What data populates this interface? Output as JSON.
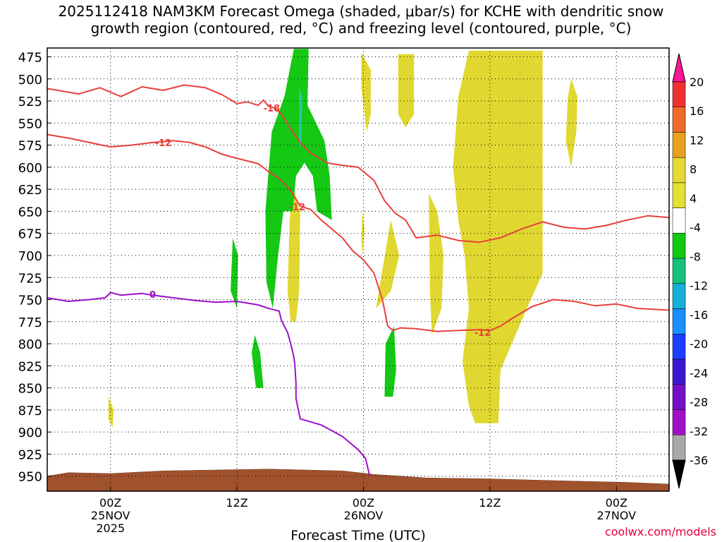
{
  "chart_data": {
    "type": "time-height",
    "title_line1": "2025112418 NAM3KM Forecast Omega (shaded, μbar/s) for KCHE with dendritic snow",
    "title_line2": "growth region (contoured, red, °C) and freezing level (contoured, purple, °C)",
    "xlabel": "Forecast Time (UTC)",
    "credit": "coolwx.com/models",
    "x_range_hours": [
      -6,
      53
    ],
    "x_ticks": [
      {
        "hour": 0,
        "lines": [
          "00Z",
          "25NOV",
          "2025"
        ]
      },
      {
        "hour": 12,
        "lines": [
          "12Z"
        ]
      },
      {
        "hour": 24,
        "lines": [
          "00Z",
          "26NOV"
        ]
      },
      {
        "hour": 36,
        "lines": [
          "12Z"
        ]
      },
      {
        "hour": 48,
        "lines": [
          "00Z",
          "27NOV"
        ]
      }
    ],
    "y_range_mb": [
      465,
      967
    ],
    "y_ticks": [
      475,
      500,
      525,
      550,
      575,
      600,
      625,
      650,
      675,
      700,
      725,
      750,
      775,
      800,
      825,
      850,
      875,
      900,
      925,
      950
    ],
    "colorbar": {
      "labels": [
        "20",
        "16",
        "12",
        "8",
        "4",
        "-4",
        "-8",
        "-12",
        "-16",
        "-20",
        "-24",
        "-28",
        "-32",
        "-36"
      ],
      "colors": [
        "#ff1493",
        "#ee3030",
        "#ee6a2a",
        "#e8a020",
        "#e6d836",
        "#e6e032",
        "#ffffff",
        "#12c812",
        "#14c07a",
        "#16b0d8",
        "#1890ff",
        "#1c3cff",
        "#3c18d0",
        "#7410c8",
        "#a010c8",
        "#a8a8a8",
        "#000000"
      ]
    },
    "omega_regions": [
      {
        "color": "#e0d830",
        "pts": [
          [
            34,
            468
          ],
          [
            41,
            468
          ],
          [
            41,
            720
          ],
          [
            39.5,
            760
          ],
          [
            37,
            830
          ],
          [
            36.8,
            890
          ],
          [
            34.6,
            890
          ],
          [
            34,
            870
          ],
          [
            33.4,
            820
          ],
          [
            34,
            760
          ],
          [
            33.6,
            700
          ],
          [
            33,
            660
          ],
          [
            32.5,
            600
          ],
          [
            33,
            520
          ]
        ]
      },
      {
        "color": "#e0d830",
        "pts": [
          [
            23.8,
            470
          ],
          [
            24.7,
            490
          ],
          [
            24.7,
            540
          ],
          [
            24.3,
            560
          ],
          [
            23.8,
            510
          ]
        ]
      },
      {
        "color": "#e0d830",
        "pts": [
          [
            27.3,
            472
          ],
          [
            28.8,
            472
          ],
          [
            28.8,
            540
          ],
          [
            28,
            555
          ],
          [
            27.3,
            540
          ]
        ]
      },
      {
        "color": "#e0d830",
        "pts": [
          [
            30.2,
            630
          ],
          [
            31,
            650
          ],
          [
            31.6,
            700
          ],
          [
            31.4,
            760
          ],
          [
            30.5,
            790
          ],
          [
            30.3,
            740
          ]
        ]
      },
      {
        "color": "#e0d830",
        "pts": [
          [
            26.6,
            660
          ],
          [
            27.4,
            700
          ],
          [
            26.6,
            740
          ],
          [
            25.2,
            760
          ],
          [
            25.6,
            730
          ]
        ]
      },
      {
        "color": "#e0d830",
        "pts": [
          [
            17.3,
            620
          ],
          [
            18,
            650
          ],
          [
            17.9,
            740
          ],
          [
            17.6,
            775
          ],
          [
            17.1,
            775
          ],
          [
            16.8,
            740
          ],
          [
            17,
            660
          ]
        ]
      },
      {
        "color": "#e0d830",
        "pts": [
          [
            43.7,
            500
          ],
          [
            44.3,
            520
          ],
          [
            44.2,
            560
          ],
          [
            43.7,
            600
          ],
          [
            43.2,
            570
          ],
          [
            43.4,
            520
          ]
        ]
      },
      {
        "color": "#e0d830",
        "pts": [
          [
            -0.2,
            860
          ],
          [
            0.3,
            875
          ],
          [
            0.2,
            895
          ],
          [
            -0.2,
            885
          ]
        ]
      },
      {
        "color": "#e0d830",
        "pts": [
          [
            23.9,
            650
          ],
          [
            24.1,
            670
          ],
          [
            23.9,
            700
          ],
          [
            23.8,
            680
          ]
        ]
      },
      {
        "color": "#14c814",
        "pts": [
          [
            17.4,
            466
          ],
          [
            18.8,
            466
          ],
          [
            18.7,
            530
          ],
          [
            20.3,
            570
          ],
          [
            20.8,
            610
          ],
          [
            21.0,
            660
          ],
          [
            19.6,
            650
          ],
          [
            19.2,
            610
          ],
          [
            18.4,
            595
          ],
          [
            17.6,
            610
          ],
          [
            17.3,
            650
          ],
          [
            16.4,
            650
          ],
          [
            15.9,
            700
          ],
          [
            15.4,
            760
          ],
          [
            14.8,
            730
          ],
          [
            14.7,
            650
          ],
          [
            15.3,
            560
          ],
          [
            16.5,
            520
          ]
        ]
      },
      {
        "color": "#14c814",
        "pts": [
          [
            11.6,
            680
          ],
          [
            12.1,
            700
          ],
          [
            12.0,
            760
          ],
          [
            11.4,
            740
          ]
        ]
      },
      {
        "color": "#14c814",
        "pts": [
          [
            13.7,
            790
          ],
          [
            14.2,
            810
          ],
          [
            14.5,
            850
          ],
          [
            13.8,
            850
          ],
          [
            13.4,
            810
          ]
        ]
      },
      {
        "color": "#14c814",
        "pts": [
          [
            26.1,
            800
          ],
          [
            26.9,
            780
          ],
          [
            27.1,
            830
          ],
          [
            26.8,
            860
          ],
          [
            26.0,
            860
          ]
        ]
      },
      {
        "color": "#28c8a0",
        "pts": [
          [
            17.9,
            510
          ],
          [
            18.2,
            520
          ],
          [
            18.1,
            580
          ],
          [
            17.9,
            570
          ]
        ]
      }
    ],
    "red_contours": [
      {
        "label": "-18",
        "label_at": [
          15.3,
          533
        ],
        "pts": [
          [
            -6,
            511
          ],
          [
            -3,
            517
          ],
          [
            -1,
            510
          ],
          [
            1,
            520
          ],
          [
            3,
            509
          ],
          [
            5,
            513
          ],
          [
            7,
            507
          ],
          [
            9,
            510
          ],
          [
            10.6,
            518
          ],
          [
            12,
            528
          ],
          [
            13,
            526
          ],
          [
            14,
            530
          ],
          [
            14.5,
            524
          ],
          [
            15,
            531
          ],
          [
            15.6,
            533
          ],
          [
            16.2,
            540
          ],
          [
            17,
            555
          ],
          [
            18,
            572
          ],
          [
            19,
            584
          ],
          [
            20.5,
            595
          ],
          [
            22,
            598
          ],
          [
            23.5,
            600
          ],
          [
            25,
            615
          ],
          [
            26,
            638
          ],
          [
            27,
            652
          ],
          [
            28,
            660
          ],
          [
            29,
            680
          ],
          [
            31,
            677
          ],
          [
            32,
            680
          ],
          [
            33,
            683
          ],
          [
            35,
            685
          ],
          [
            37,
            680
          ],
          [
            38,
            675
          ],
          [
            39,
            670
          ],
          [
            41,
            662
          ],
          [
            43,
            668
          ],
          [
            45,
            670
          ],
          [
            47,
            666
          ],
          [
            49,
            660
          ],
          [
            51,
            655
          ],
          [
            53,
            657
          ]
        ]
      },
      {
        "label": "-12",
        "label_at": [
          5,
          572
        ],
        "pts": [
          [
            -6,
            563
          ],
          [
            -4,
            567
          ],
          [
            -2,
            572
          ],
          [
            0,
            577
          ],
          [
            2,
            575
          ],
          [
            4,
            572
          ],
          [
            6,
            570
          ],
          [
            7.5,
            572
          ],
          [
            9,
            577
          ],
          [
            10.5,
            585
          ],
          [
            12,
            590
          ],
          [
            14,
            596
          ],
          [
            15,
            605
          ],
          [
            16,
            613
          ],
          [
            17,
            625
          ],
          [
            18,
            644
          ],
          [
            19,
            648
          ],
          [
            20,
            660
          ],
          [
            21,
            670
          ],
          [
            22,
            680
          ],
          [
            23,
            695
          ],
          [
            24,
            705
          ],
          [
            25,
            720
          ],
          [
            25.8,
            750
          ],
          [
            26.3,
            780
          ],
          [
            26.8,
            785
          ],
          [
            27.5,
            782
          ],
          [
            29,
            783
          ],
          [
            31,
            786
          ],
          [
            33,
            785
          ],
          [
            35,
            784
          ],
          [
            36,
            785
          ],
          [
            37,
            780
          ],
          [
            38,
            772
          ],
          [
            40,
            758
          ],
          [
            42,
            750
          ],
          [
            44,
            752
          ],
          [
            46,
            757
          ],
          [
            48,
            755
          ],
          [
            50,
            760
          ],
          [
            53,
            762
          ]
        ]
      }
    ],
    "red_labels_extra": [
      {
        "label": "-12",
        "at": [
          17.7,
          645
        ]
      },
      {
        "label": "-12",
        "at": [
          35.3,
          787
        ]
      }
    ],
    "purple_contour": {
      "label": "0",
      "label_at": [
        4,
        744
      ],
      "pts": [
        [
          -6,
          748
        ],
        [
          -4,
          752
        ],
        [
          -2,
          750
        ],
        [
          -0.5,
          748
        ],
        [
          0,
          742
        ],
        [
          1,
          745
        ],
        [
          3,
          743
        ],
        [
          4,
          745
        ],
        [
          6,
          748
        ],
        [
          8,
          751
        ],
        [
          10,
          753
        ],
        [
          12,
          752
        ],
        [
          14,
          756
        ],
        [
          15,
          760
        ],
        [
          16,
          763
        ],
        [
          16.2,
          773
        ],
        [
          16.8,
          787
        ],
        [
          17.1,
          800
        ],
        [
          17.4,
          815
        ],
        [
          17.5,
          825
        ],
        [
          17.6,
          845
        ],
        [
          17.6,
          862
        ],
        [
          18,
          885
        ],
        [
          20,
          892
        ],
        [
          22,
          905
        ],
        [
          23.5,
          920
        ],
        [
          24.2,
          930
        ],
        [
          24.6,
          950
        ]
      ]
    },
    "terrain": {
      "color": "#a0522d",
      "pts": [
        [
          -6,
          950
        ],
        [
          -4,
          946
        ],
        [
          0,
          947
        ],
        [
          5,
          944
        ],
        [
          15,
          942
        ],
        [
          22,
          944
        ],
        [
          25,
          948
        ],
        [
          30,
          952
        ],
        [
          36,
          953
        ],
        [
          42,
          955
        ],
        [
          49,
          957
        ],
        [
          53,
          959
        ]
      ]
    }
  }
}
